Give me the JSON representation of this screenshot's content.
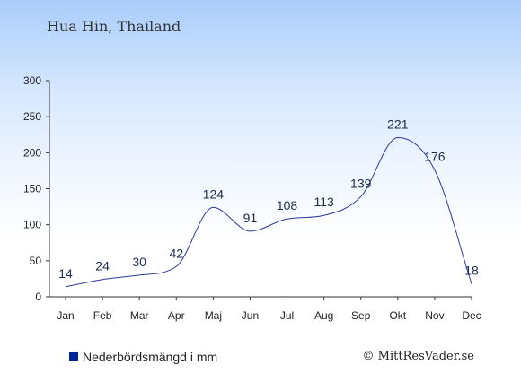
{
  "chart_data": {
    "type": "line",
    "title": "Hua Hin, Thailand",
    "categories": [
      "Jan",
      "Feb",
      "Mar",
      "Apr",
      "Maj",
      "Jun",
      "Jul",
      "Aug",
      "Sep",
      "Okt",
      "Nov",
      "Dec"
    ],
    "series": [
      {
        "name": "Nederbördsmängd i mm",
        "values": [
          14,
          24,
          30,
          42,
          124,
          91,
          108,
          113,
          139,
          221,
          176,
          18
        ]
      }
    ],
    "yticks": [
      "0",
      "50",
      "100",
      "150",
      "200",
      "250",
      "300"
    ],
    "ylim": [
      0,
      300
    ],
    "grid": false,
    "legend_position": "bottom-left",
    "line_color": "#2d3a9c",
    "swatch_color": "#00239c"
  },
  "credit": "© MittResVader.se"
}
